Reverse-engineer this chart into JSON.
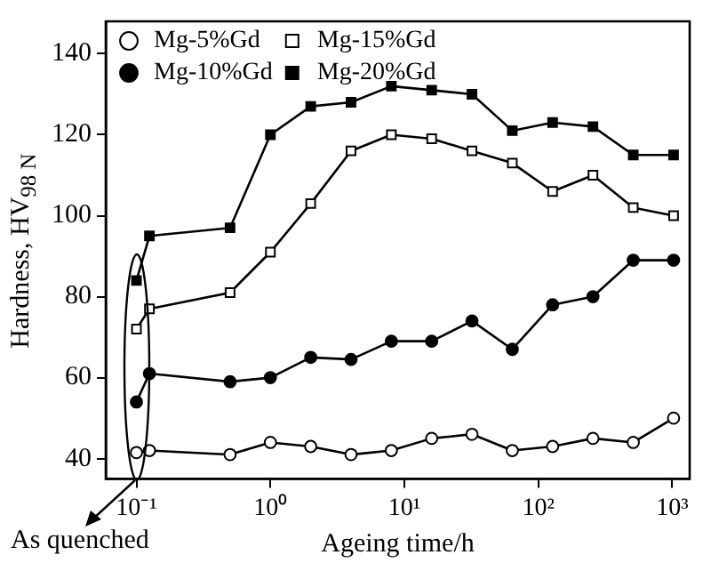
{
  "chart_data": {
    "type": "line",
    "xlabel": "Ageing time/h",
    "ylabel": "Hardness, HV$_{98 N}$",
    "x": [
      0.1,
      0.125,
      0.5,
      1,
      2,
      4,
      8,
      16,
      32,
      64,
      128,
      256,
      512,
      1024
    ],
    "series": [
      {
        "name": "Mg-5%Gd",
        "color": "#ffffff",
        "marker": "circle",
        "values": [
          41.5,
          42,
          41,
          44,
          43,
          41,
          42,
          45,
          46,
          42,
          43,
          45,
          44,
          50
        ]
      },
      {
        "name": "Mg-10%Gd",
        "color": "#000000",
        "marker": "circle",
        "values": [
          54,
          61,
          59,
          60,
          65,
          64.5,
          69,
          69,
          74,
          67,
          78,
          80,
          89,
          89
        ]
      },
      {
        "name": "Mg-15%Gd",
        "color": "#ffffff",
        "marker": "square",
        "values": [
          72,
          77,
          81,
          91,
          103,
          116,
          120,
          119,
          116,
          113,
          106,
          110,
          102,
          100
        ]
      },
      {
        "name": "Mg-20%Gd",
        "color": "#000000",
        "marker": "square",
        "values": [
          84,
          95,
          97,
          120,
          127,
          128,
          132,
          131,
          130,
          121,
          123,
          122,
          115,
          115
        ]
      }
    ],
    "log": "x",
    "xlim": [
      0.059,
      1350
    ],
    "xticks": [
      {
        "value": 0.1,
        "label": "10⁻¹"
      },
      {
        "value": 1,
        "label": "10⁰"
      },
      {
        "value": 10,
        "label": "10¹"
      },
      {
        "value": 100,
        "label": "10²"
      },
      {
        "value": 1000,
        "label": "10³"
      }
    ],
    "ylim": [
      35,
      148
    ],
    "yticks": [
      40,
      60,
      80,
      100,
      120,
      140
    ],
    "grid": false,
    "legend": "top",
    "line_style": "solid",
    "annotations": [
      {
        "text": "As quenched",
        "x": 0.1,
        "y": 41.5
      }
    ]
  }
}
